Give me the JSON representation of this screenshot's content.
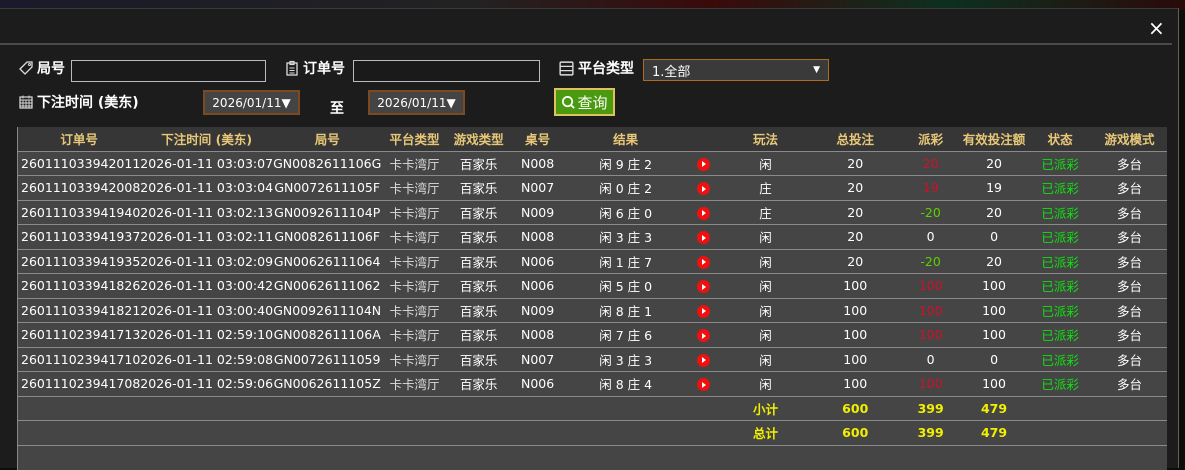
{
  "close_label": "×",
  "filters": {
    "round_label": "局号",
    "round_value": "",
    "order_label": "订单号",
    "order_value": "",
    "platform_label": "平台类型",
    "platform_value": "1.全部",
    "time_label": "下注时间 (美东)",
    "date_from": "2026/01/11▼",
    "to_label": "至",
    "date_to": "2026/01/11▼",
    "query_label": "查询"
  },
  "table": {
    "headers": [
      "订单号",
      "下注时间 (美东)",
      "局号",
      "平台类型",
      "游戏类型",
      "桌号",
      "结果",
      "",
      "玩法",
      "总投注",
      "派彩",
      "有效投注额",
      "状态",
      "游戏模式"
    ],
    "rows": [
      [
        "260111033942011",
        "2026-01-11 03:03:07",
        "GN0082611106G",
        "卡卡湾厅",
        "百家乐",
        "N008",
        "闲 9 庄 2",
        "闲",
        "20",
        "20",
        "20",
        "已派彩",
        "多台",
        "red"
      ],
      [
        "260111033942008",
        "2026-01-11 03:03:04",
        "GN0072611105F",
        "卡卡湾厅",
        "百家乐",
        "N007",
        "闲 0 庄 2",
        "庄",
        "20",
        "19",
        "19",
        "已派彩",
        "多台",
        "red"
      ],
      [
        "260111033941940",
        "2026-01-11 03:02:13",
        "GN0092611104P",
        "卡卡湾厅",
        "百家乐",
        "N009",
        "闲 6 庄 0",
        "庄",
        "20",
        "-20",
        "20",
        "已派彩",
        "多台",
        "grn"
      ],
      [
        "260111033941937",
        "2026-01-11 03:02:11",
        "GN0082611106F",
        "卡卡湾厅",
        "百家乐",
        "N008",
        "闲 3 庄 3",
        "闲",
        "20",
        "0",
        "0",
        "已派彩",
        "多台",
        ""
      ],
      [
        "260111033941935",
        "2026-01-11 03:02:09",
        "GN00626111064",
        "卡卡湾厅",
        "百家乐",
        "N006",
        "闲 1 庄 7",
        "闲",
        "20",
        "-20",
        "20",
        "已派彩",
        "多台",
        "grn"
      ],
      [
        "260111033941826",
        "2026-01-11 03:00:42",
        "GN00626111062",
        "卡卡湾厅",
        "百家乐",
        "N006",
        "闲 5 庄 0",
        "闲",
        "100",
        "100",
        "100",
        "已派彩",
        "多台",
        "red"
      ],
      [
        "260111033941821",
        "2026-01-11 03:00:40",
        "GN0092611104N",
        "卡卡湾厅",
        "百家乐",
        "N009",
        "闲 8 庄 1",
        "闲",
        "100",
        "100",
        "100",
        "已派彩",
        "多台",
        "red"
      ],
      [
        "260111023941713",
        "2026-01-11 02:59:10",
        "GN0082611106A",
        "卡卡湾厅",
        "百家乐",
        "N008",
        "闲 7 庄 6",
        "闲",
        "100",
        "100",
        "100",
        "已派彩",
        "多台",
        "red"
      ],
      [
        "260111023941710",
        "2026-01-11 02:59:08",
        "GN00726111059",
        "卡卡湾厅",
        "百家乐",
        "N007",
        "闲 3 庄 3",
        "闲",
        "100",
        "0",
        "0",
        "已派彩",
        "多台",
        ""
      ],
      [
        "260111023941708",
        "2026-01-11 02:59:06",
        "GN0062611105Z",
        "卡卡湾厅",
        "百家乐",
        "N006",
        "闲 8 庄 4",
        "闲",
        "100",
        "100",
        "100",
        "已派彩",
        "多台",
        "red"
      ]
    ],
    "subtotal": {
      "label": "小计",
      "bet": "600",
      "payout": "399",
      "valid": "479"
    },
    "total": {
      "label": "总计",
      "bet": "600",
      "payout": "399",
      "valid": "479"
    }
  },
  "colors": {
    "accent_header": "#e8c878",
    "payout_win": "#d0102a",
    "payout_loss": "#5dd000",
    "status": "#10e010",
    "totals": "#f0f000",
    "query_button": "#4a9a10"
  }
}
